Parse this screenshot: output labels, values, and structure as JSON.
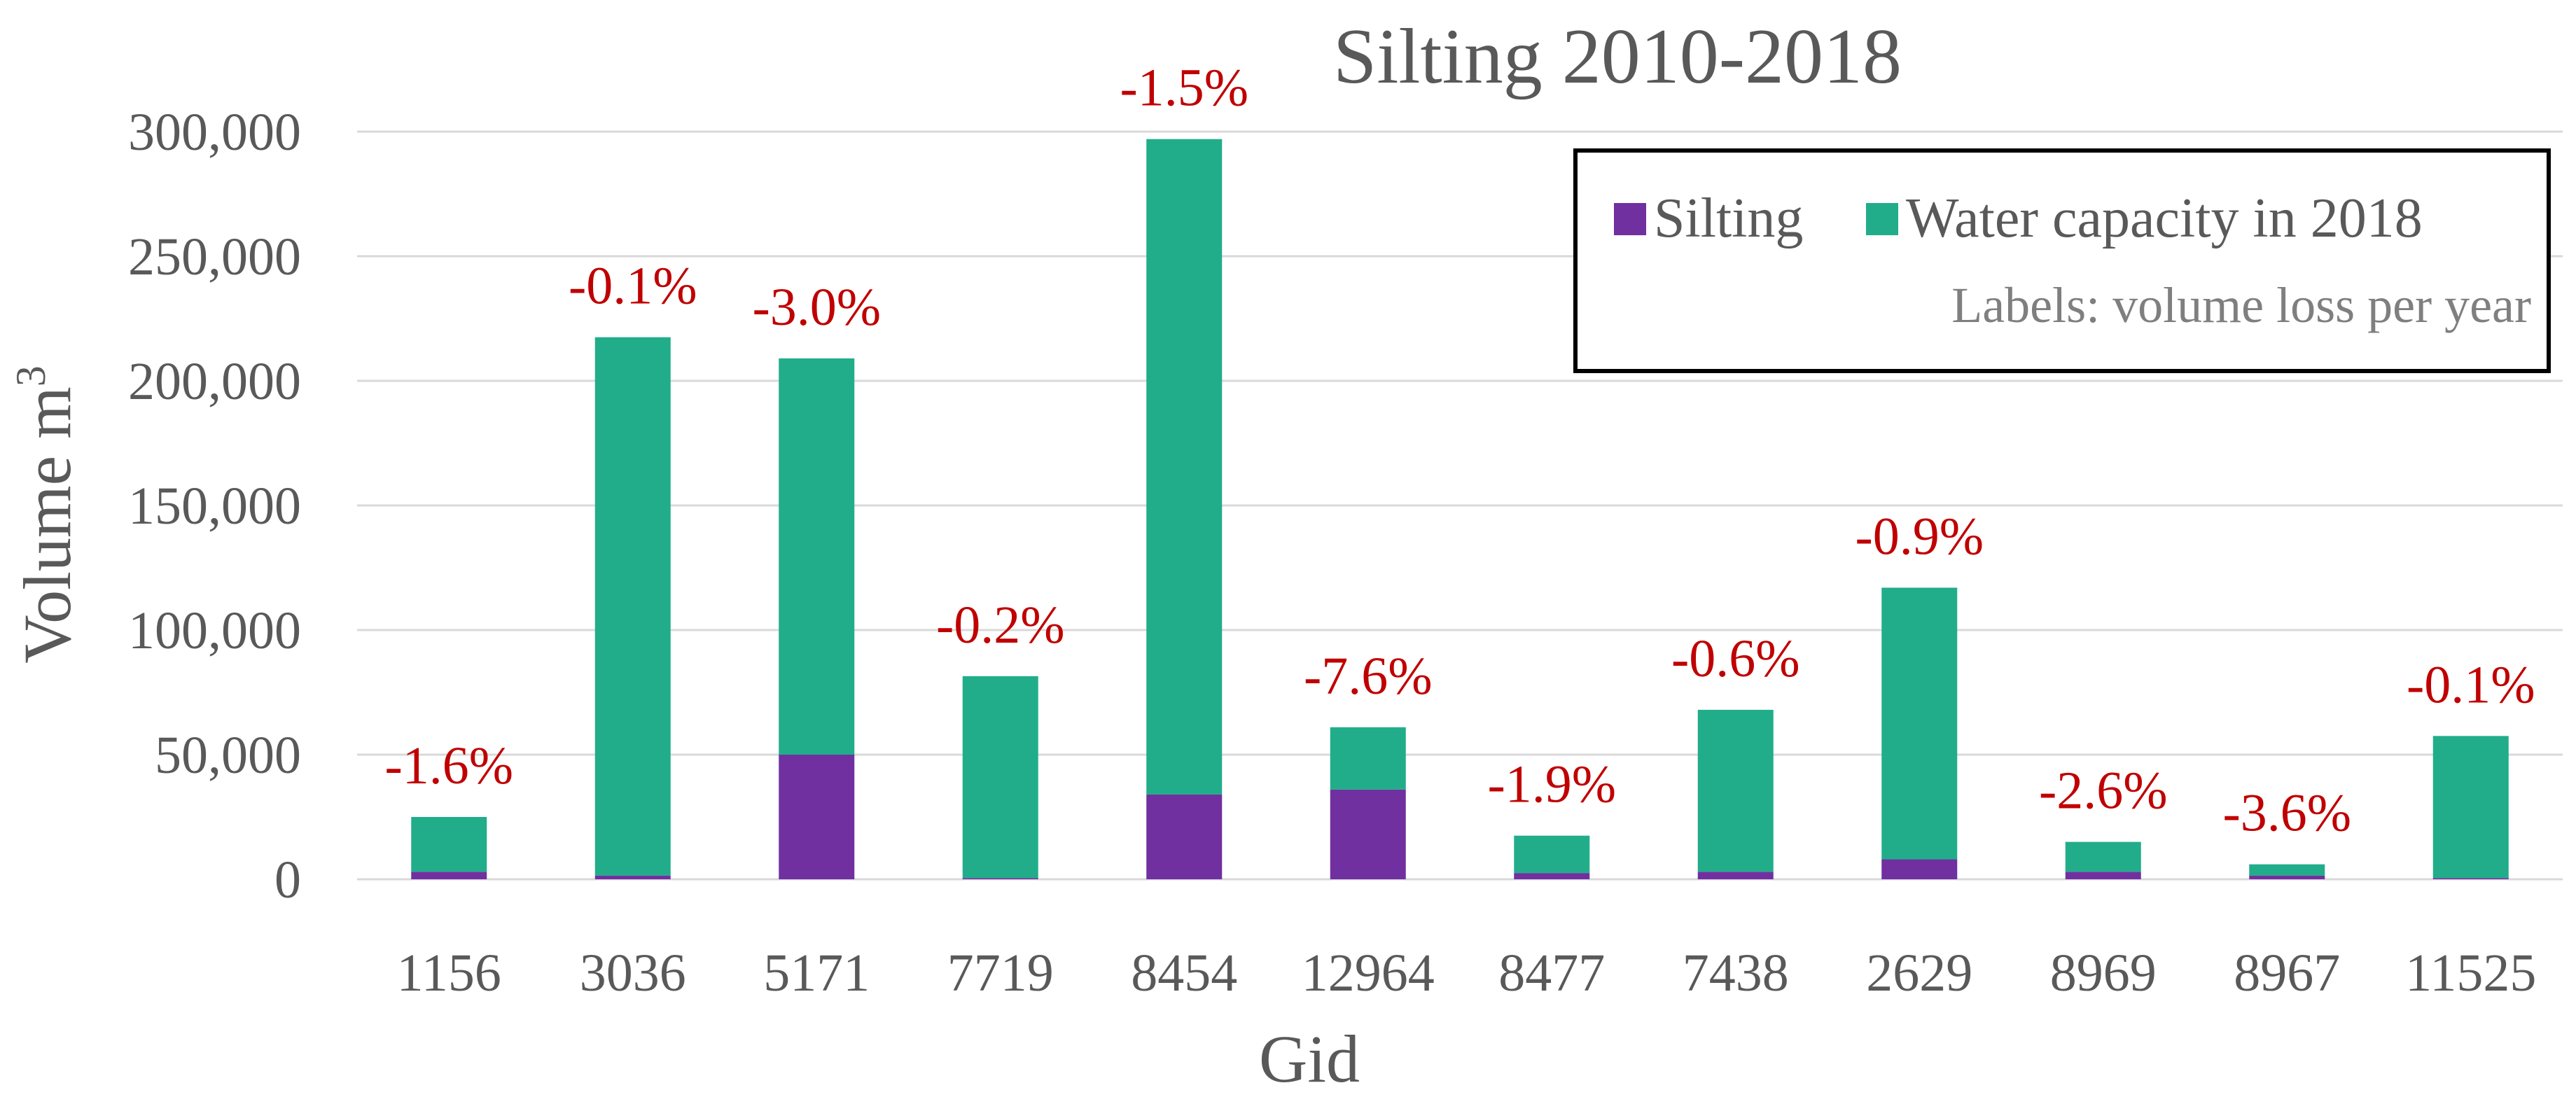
{
  "chart_data": {
    "type": "bar",
    "stacked": true,
    "title": "Silting 2010-2018",
    "xlabel": "Gid",
    "ylabel": "Volume m",
    "ylabel_superscript": "3",
    "ylim": [
      0,
      300000
    ],
    "yticks": [
      0,
      50000,
      100000,
      150000,
      200000,
      250000,
      300000
    ],
    "ytick_labels": [
      "0",
      "50,000",
      "100,000",
      "150,000",
      "200,000",
      "250,000",
      "300,000"
    ],
    "categories": [
      "1156",
      "3036",
      "5171",
      "7719",
      "8454",
      "12964",
      "8477",
      "7438",
      "2629",
      "8969",
      "8967",
      "11525"
    ],
    "series": [
      {
        "name": "Silting",
        "color": "#7030a0",
        "values": [
          3000,
          1500,
          50000,
          500,
          34000,
          36000,
          2500,
          3000,
          8000,
          3000,
          1500,
          500
        ]
      },
      {
        "name": "Water capacity in 2018",
        "color": "#21ad8a",
        "values": [
          22000,
          216000,
          159000,
          81000,
          263000,
          25000,
          15000,
          65000,
          109000,
          12000,
          4500,
          57000
        ]
      }
    ],
    "data_labels": [
      "-1.6%",
      "-0.1%",
      "-3.0%",
      "-0.2%",
      "-1.5%",
      "-7.6%",
      "-1.9%",
      "-0.6%",
      "-0.9%",
      "-2.6%",
      "-3.6%",
      "-0.1%"
    ],
    "legend": {
      "position": "top-right",
      "note": "Labels: volume loss per year"
    },
    "grid": true
  }
}
